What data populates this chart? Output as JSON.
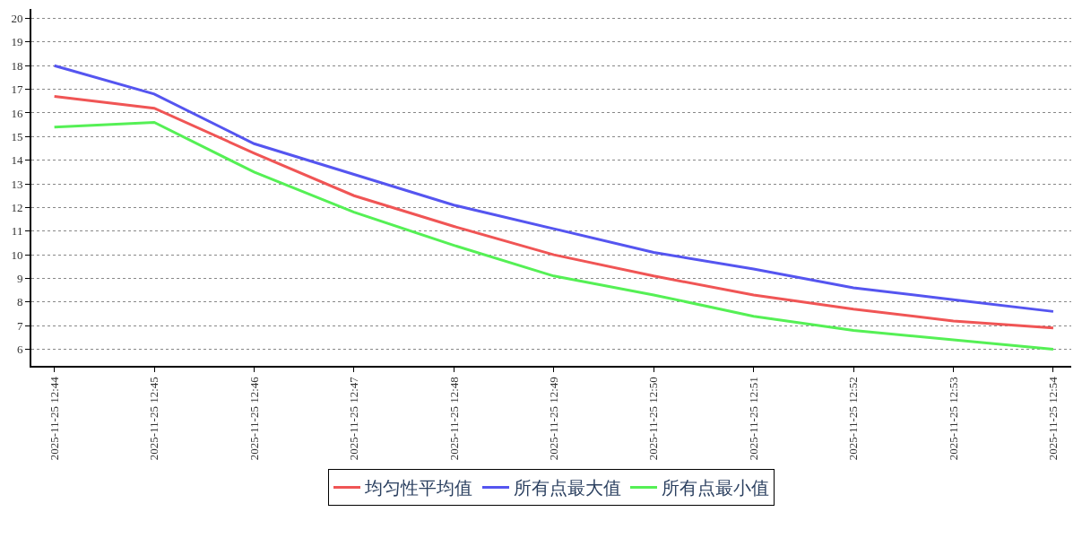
{
  "chart_data": {
    "type": "line",
    "categories": [
      "2025-11-25 12:44",
      "2025-11-25 12:45",
      "2025-11-25 12:46",
      "2025-11-25 12:47",
      "2025-11-25 12:48",
      "2025-11-25 12:49",
      "2025-11-25 12:50",
      "2025-11-25 12:51",
      "2025-11-25 12:52",
      "2025-11-25 12:53",
      "2025-11-25 12:54"
    ],
    "series": [
      {
        "name": "均匀性平均值",
        "color": "#f05555",
        "values": [
          16.7,
          16.2,
          14.3,
          12.5,
          11.2,
          10.0,
          9.1,
          8.3,
          7.7,
          7.2,
          6.9
        ]
      },
      {
        "name": "所有点最大值",
        "color": "#5555f0",
        "values": [
          18.0,
          16.8,
          14.7,
          13.4,
          12.1,
          11.1,
          10.1,
          9.4,
          8.6,
          8.1,
          7.6
        ]
      },
      {
        "name": "所有点最小值",
        "color": "#55f055",
        "values": [
          15.4,
          15.6,
          13.5,
          11.8,
          10.4,
          9.1,
          8.3,
          7.4,
          6.8,
          6.4,
          6.0
        ]
      }
    ],
    "ylim": [
      5.3,
      20.4
    ],
    "yticks": [
      6,
      7,
      8,
      9,
      10,
      11,
      12,
      13,
      14,
      15,
      16,
      17,
      18,
      19,
      20
    ],
    "grid": "y",
    "legend": "bottom",
    "marker": "none",
    "line_style": "solid"
  }
}
